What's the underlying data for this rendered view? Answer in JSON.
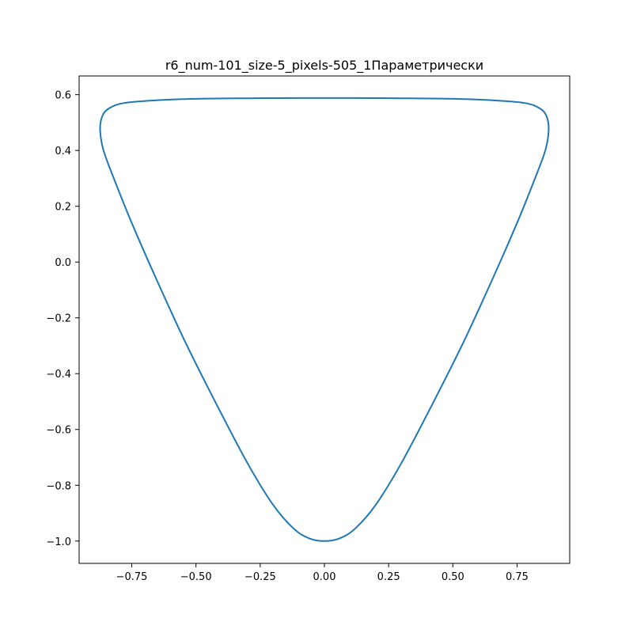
{
  "chart_data": {
    "type": "line",
    "title": "r6_num-101_size-5_pixels-505_1Параметрически",
    "xlabel": "",
    "ylabel": "",
    "xlim": [
      -0.955,
      0.955
    ],
    "ylim": [
      -1.08,
      0.667
    ],
    "grid": false,
    "x_ticks": [
      -0.75,
      -0.5,
      -0.25,
      0.0,
      0.25,
      0.5,
      0.75
    ],
    "x_tick_labels": [
      "−0.75",
      "−0.50",
      "−0.25",
      "0.00",
      "0.25",
      "0.50",
      "0.75"
    ],
    "y_ticks": [
      0.6,
      0.4,
      0.2,
      0.0,
      -0.2,
      -0.4,
      -0.6,
      -0.8,
      -1.0
    ],
    "y_tick_labels": [
      "0.6",
      "0.4",
      "0.2",
      "0.0",
      "−0.2",
      "−0.4",
      "−0.6",
      "−0.8",
      "−1.0"
    ],
    "series": [
      {
        "color": "#1f77b4",
        "x": [
          0.0,
          0.06,
          0.12,
          0.2,
          0.3,
          0.42,
          0.54,
          0.65,
          0.75,
          0.82,
          0.86,
          0.873,
          0.866,
          0.84,
          0.78,
          0.65,
          0.5,
          0.3,
          0.1,
          0.0,
          -0.1,
          -0.3,
          -0.5,
          -0.65,
          -0.78,
          -0.84,
          -0.866,
          -0.873,
          -0.86,
          -0.82,
          -0.75,
          -0.65,
          -0.54,
          -0.42,
          -0.3,
          -0.2,
          -0.12,
          -0.06,
          0.0
        ],
        "y": [
          -1.0,
          -0.99,
          -0.955,
          -0.87,
          -0.72,
          -0.51,
          -0.29,
          -0.07,
          0.14,
          0.3,
          0.4,
          0.47,
          0.52,
          0.55,
          0.57,
          0.58,
          0.585,
          0.587,
          0.588,
          0.588,
          0.588,
          0.587,
          0.585,
          0.58,
          0.57,
          0.55,
          0.52,
          0.47,
          0.4,
          0.3,
          0.14,
          -0.07,
          -0.29,
          -0.51,
          -0.72,
          -0.87,
          -0.955,
          -0.99,
          -1.0
        ]
      }
    ]
  }
}
